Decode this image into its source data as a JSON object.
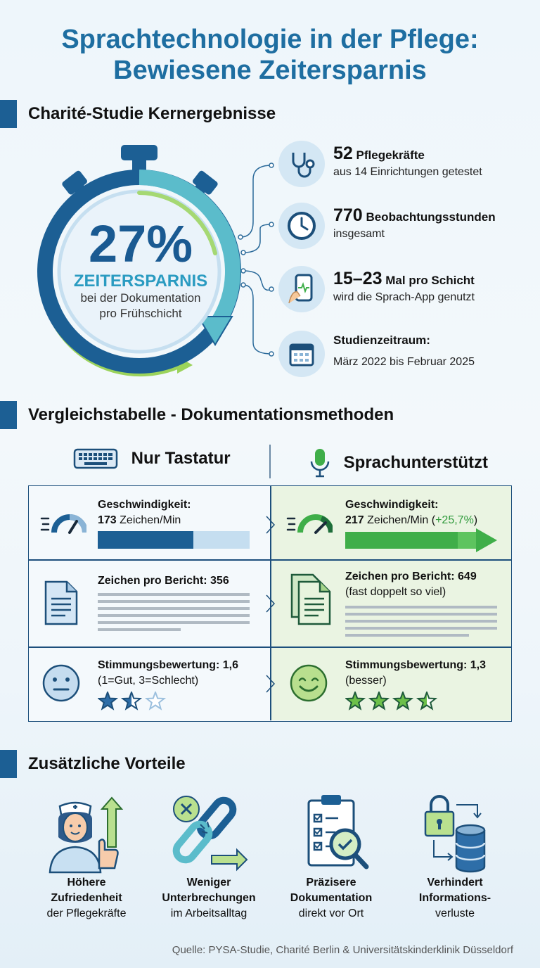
{
  "title": {
    "line1": "Sprachtechnologie in der Pflege:",
    "line2": "Bewiesene Zeitersparnis"
  },
  "section1": {
    "heading": "Charité-Studie Kernergebnisse",
    "stopwatch": {
      "percent": "27%",
      "label": "ZEITERSPARNIS",
      "sub1": "bei der Dokumentation",
      "sub2": "pro Frühschicht"
    },
    "facts": [
      {
        "icon": "stethoscope-icon",
        "num": "52",
        "rest": "Pflegekräfte",
        "line2": "aus 14 Einrichtungen getestet"
      },
      {
        "icon": "clock-icon",
        "num": "770",
        "rest": "Beobachtungsstunden",
        "line2": "insgesamt"
      },
      {
        "icon": "smartphone-icon",
        "num": "15–23",
        "rest": "Mal pro Schicht",
        "line2": "wird die Sprach-App genutzt"
      },
      {
        "icon": "calendar-icon",
        "num": "",
        "rest": "Studienzeitraum:",
        "line2": "März 2022 bis Februar 2025"
      }
    ]
  },
  "section2": {
    "heading": "Vergleichstabelle - Dokumentationsmethoden",
    "left_header": "Nur Tastatur",
    "right_header": "Sprachunterstützt",
    "rows": {
      "speed": {
        "left_label": "Geschwindigkeit:",
        "left_num": "173",
        "left_unit": "Zeichen/Min",
        "left_fill": 0.63,
        "right_label": "Geschwindigkeit:",
        "right_num": "217",
        "right_unit": "Zeichen/Min (",
        "right_gain": "+25,7%",
        "right_close": ")"
      },
      "chars": {
        "left_label": "Zeichen pro Bericht: 356",
        "right_label": "Zeichen pro Bericht: 649",
        "right_sub": "(fast doppelt so viel)"
      },
      "mood": {
        "left_label": "Stimmungsbewertung: 1,6",
        "left_sub": "(1=Gut, 3=Schlecht)",
        "left_stars": 1.5,
        "right_label": "Stimmungsbewertung: 1,3",
        "right_sub": "(besser)",
        "right_stars": 3.5
      }
    }
  },
  "section3": {
    "heading": "Zusätzliche Vorteile",
    "benefits": [
      {
        "icon": "nurse-thumbs-up-icon",
        "bold1": "Höhere",
        "bold2": "Zufriedenheit",
        "normal": "der Pflegekräfte"
      },
      {
        "icon": "broken-chain-icon",
        "bold1": "Weniger",
        "bold2": "Unterbrechungen",
        "normal": "im Arbeitsalltag"
      },
      {
        "icon": "clipboard-magnifier-icon",
        "bold1": "Präzisere",
        "bold2": "Dokumentation",
        "normal": "direkt vor Ort"
      },
      {
        "icon": "lock-database-icon",
        "bold1": "Verhindert",
        "bold2": "Informations-",
        "normal": "verluste"
      }
    ]
  },
  "source": "Quelle: PYSA-Studie, Charité Berlin & Universitätskinderklinik Düsseldorf",
  "colors": {
    "title": "#1e6ea1",
    "navy": "#1c5f94",
    "teal": "#5bbccb",
    "green": "#8cc63f",
    "speech_green": "#3fae49"
  }
}
